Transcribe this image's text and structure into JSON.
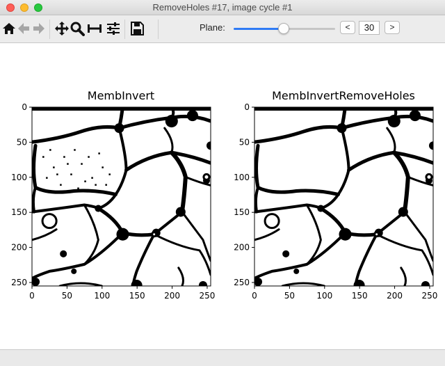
{
  "window": {
    "title": "RemoveHoles #17, image cycle #1"
  },
  "toolbar": {
    "icons": [
      "home-icon",
      "back-arrow-icon",
      "forward-arrow-icon",
      "pan-icon",
      "zoom-icon",
      "subplots-icon",
      "configure-icon",
      "save-icon"
    ],
    "plane_label": "Plane:",
    "plane_value": "30",
    "plane_fraction": 0.5,
    "prev_label": "<",
    "next_label": ">",
    "accent_color": "#2f7bf5"
  },
  "panels": [
    {
      "title": "MembInvert",
      "xticks": [
        "0",
        "50",
        "100",
        "150",
        "200",
        "250"
      ],
      "yticks": [
        "0",
        "50",
        "100",
        "150",
        "200",
        "250"
      ],
      "xlim": [
        0,
        255
      ],
      "ylim": [
        255,
        0
      ],
      "fill_holes": false
    },
    {
      "title": "MembInvertRemoveHoles",
      "xticks": [
        "0",
        "50",
        "100",
        "150",
        "200",
        "250"
      ],
      "yticks": [
        "0",
        "50",
        "100",
        "150",
        "200",
        "250"
      ],
      "xlim": [
        0,
        255
      ],
      "ylim": [
        255,
        0
      ],
      "fill_holes": true
    }
  ]
}
